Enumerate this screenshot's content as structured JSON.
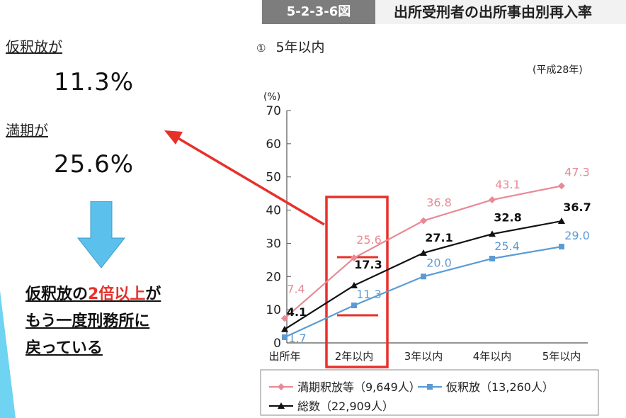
{
  "left_panel": {
    "parole_label": "仮釈放が",
    "parole_value": "11.3%",
    "expiry_label": "満期が",
    "expiry_value": "25.6%",
    "conclusion_line1_prefix": "仮釈放の",
    "conclusion_line1_highlight": "2倍以上",
    "conclusion_line1_suffix": "が",
    "conclusion_line2": "もう一度刑務所に",
    "conclusion_line3": "戻っている"
  },
  "figure": {
    "tag": "5-2-3-6図",
    "title": "出所受刑者の出所事由別再入率",
    "subtitle": "5年以内",
    "subtitle_marker": "①",
    "year_note": "(平成28年)"
  },
  "colors": {
    "expiry": "#e88a95",
    "parole": "#5b9bd5",
    "total": "#111111",
    "highlight": "#e8302a",
    "arrow_down": "#5bc0eb"
  },
  "chart_data": {
    "type": "line",
    "ylabel": "(%)",
    "ylim": [
      0,
      70
    ],
    "yticks": [
      0,
      10,
      20,
      30,
      40,
      50,
      60,
      70
    ],
    "categories": [
      "出所年",
      "2年以内",
      "3年以内",
      "4年以内",
      "5年以内"
    ],
    "series": [
      {
        "name": "満期釈放等（9,649人）",
        "values": [
          7.4,
          25.6,
          36.8,
          43.1,
          47.3
        ],
        "labels": [
          "7.4",
          "25.6",
          "36.8",
          "43.1",
          "47.3"
        ],
        "color": "#e88a95",
        "marker": "diamond"
      },
      {
        "name": "仮釈放（13,260人）",
        "values": [
          1.7,
          11.3,
          20.0,
          25.4,
          29.0
        ],
        "labels": [
          "1.7",
          "11.3",
          "20.0",
          "25.4",
          "29.0"
        ],
        "color": "#5b9bd5",
        "marker": "square"
      },
      {
        "name": "総数（22,909人）",
        "values": [
          4.1,
          17.3,
          27.1,
          32.8,
          36.7
        ],
        "labels": [
          "4.1",
          "17.3",
          "27.1",
          "32.8",
          "36.7"
        ],
        "color": "#111111",
        "marker": "triangle"
      }
    ],
    "legend": "bottom"
  }
}
